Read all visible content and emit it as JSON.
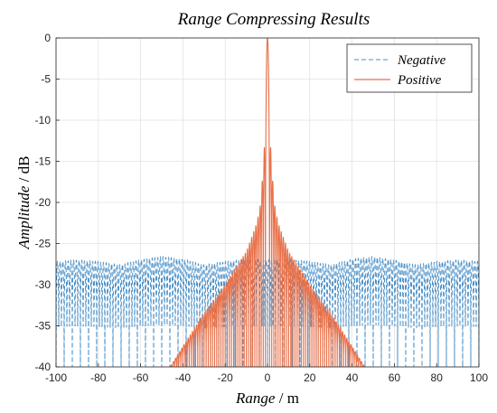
{
  "chart_data": {
    "type": "line",
    "title": "Range Compressing Results",
    "xlabel": "Range / m",
    "xlabel_parts": {
      "italic": "Range",
      "unit": " / m"
    },
    "ylabel": "Amplitude / dB",
    "ylabel_parts": {
      "italic": "Amplitude",
      "unit": " / dB"
    },
    "xlim": [
      -100,
      100
    ],
    "ylim": [
      -40,
      0
    ],
    "x_ticks": [
      -100,
      -80,
      -60,
      -40,
      -20,
      0,
      20,
      40,
      60,
      80,
      100
    ],
    "y_ticks": [
      0,
      -5,
      -10,
      -15,
      -20,
      -25,
      -30,
      -35,
      -40
    ],
    "grid": true,
    "legend_position": "top-right",
    "series": [
      {
        "name": "Negative",
        "style": "dashed",
        "color": "#4a90c8",
        "description_values": {
          "floor_db": -40,
          "upper_envelope": [
            [
              -100,
              -27.2
            ],
            [
              -90,
              -27.0
            ],
            [
              -80,
              -27.2
            ],
            [
              -70,
              -27.6
            ],
            [
              -60,
              -27.0
            ],
            [
              -50,
              -26.6
            ],
            [
              -40,
              -26.9
            ],
            [
              -30,
              -27.6
            ],
            [
              -20,
              -27.2
            ],
            [
              -10,
              -26.9
            ],
            [
              0,
              -27.0
            ],
            [
              10,
              -26.9
            ],
            [
              20,
              -27.2
            ],
            [
              30,
              -27.6
            ],
            [
              40,
              -26.9
            ],
            [
              50,
              -26.6
            ],
            [
              60,
              -27.0
            ],
            [
              70,
              -27.6
            ],
            [
              80,
              -27.2
            ],
            [
              90,
              -27.0
            ],
            [
              100,
              -27.2
            ]
          ]
        }
      },
      {
        "name": "Positive",
        "style": "solid",
        "color": "#e8714a",
        "description_values": {
          "peak": [
            0,
            0
          ],
          "sidelobe_peaks": [
            [
              -1.5,
              -13.3
            ],
            [
              1.5,
              -13.3
            ],
            [
              -2.5,
              -17.5
            ],
            [
              2.5,
              -17.5
            ],
            [
              -3.5,
              -20.5
            ],
            [
              3.5,
              -20.5
            ],
            [
              -5,
              -22.5
            ],
            [
              5,
              -22.5
            ],
            [
              -10,
              -26
            ],
            [
              10,
              -26
            ],
            [
              -20,
              -30
            ],
            [
              20,
              -30
            ],
            [
              -30,
              -33.5
            ],
            [
              30,
              -33.5
            ],
            [
              -40,
              -37.5
            ],
            [
              40,
              -37.5
            ],
            [
              -46,
              -40
            ],
            [
              46,
              -40
            ]
          ]
        }
      }
    ]
  }
}
